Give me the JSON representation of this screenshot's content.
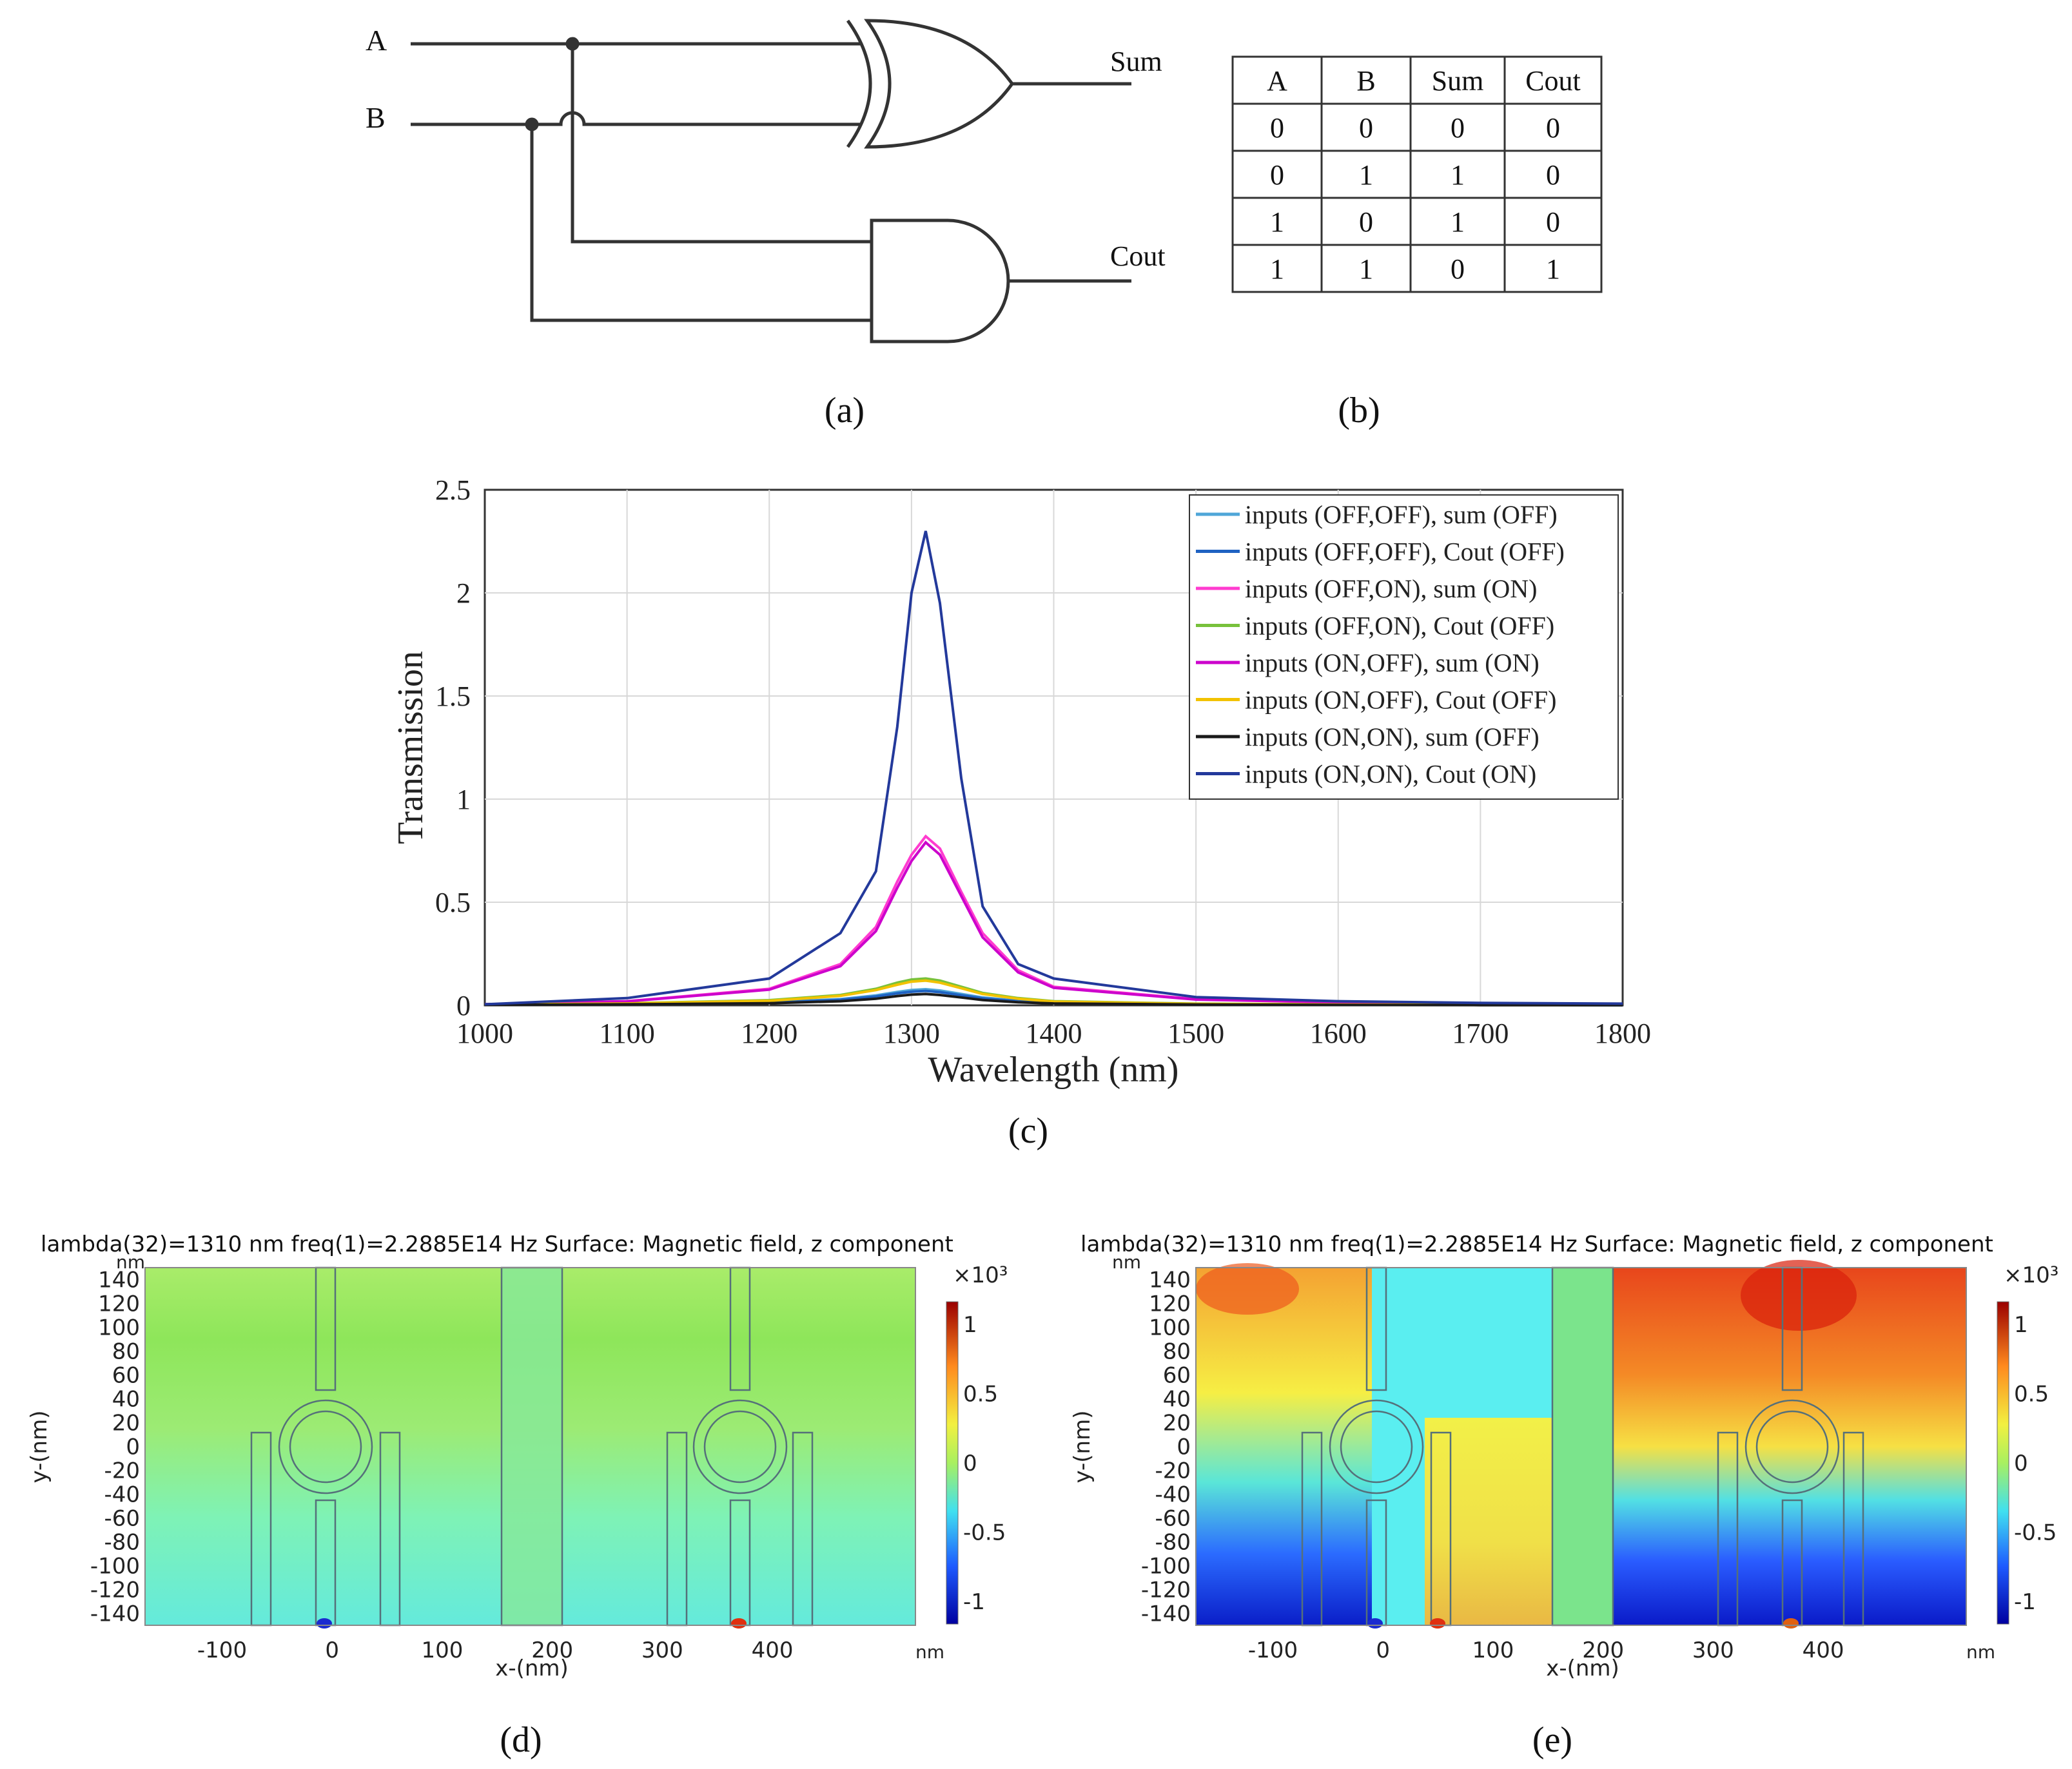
{
  "circuit": {
    "inputs": [
      "A",
      "B"
    ],
    "outputs": [
      "Sum",
      "Cout"
    ],
    "label": "(a)"
  },
  "truth_table": {
    "label": "(b)",
    "headers": [
      "A",
      "B",
      "Sum",
      "Cout"
    ],
    "rows": [
      [
        "0",
        "0",
        "0",
        "0"
      ],
      [
        "0",
        "1",
        "1",
        "0"
      ],
      [
        "1",
        "0",
        "1",
        "0"
      ],
      [
        "1",
        "1",
        "0",
        "1"
      ]
    ]
  },
  "chart_data": [
    {
      "panel": "(c)",
      "type": "line",
      "xlabel": "Wavelength (nm)",
      "ylabel": "Transmission",
      "xlim": [
        1000,
        1800
      ],
      "ylim": [
        0,
        2.5
      ],
      "xticks": [
        "1000",
        "1100",
        "1200",
        "1300",
        "1400",
        "1500",
        "1600",
        "1700",
        "1800"
      ],
      "yticks": [
        "0",
        "0.5",
        "1",
        "1.5",
        "2",
        "2.5"
      ],
      "grid": true,
      "legend_position": "top-right",
      "x": [
        1000,
        1100,
        1200,
        1250,
        1275,
        1290,
        1300,
        1310,
        1320,
        1335,
        1350,
        1375,
        1400,
        1500,
        1600,
        1700,
        1800
      ],
      "series": [
        {
          "name": "inputs (OFF,OFF), sum (OFF)",
          "color": "#4fa6d8",
          "values": [
            0.003,
            0.007,
            0.015,
            0.03,
            0.048,
            0.065,
            0.074,
            0.078,
            0.072,
            0.055,
            0.038,
            0.022,
            0.013,
            0.005,
            0.003,
            0.002,
            0.001
          ]
        },
        {
          "name": "inputs (OFF,OFF), Cout (OFF)",
          "color": "#1f62c2",
          "values": [
            0.003,
            0.006,
            0.013,
            0.027,
            0.043,
            0.058,
            0.066,
            0.07,
            0.064,
            0.049,
            0.034,
            0.02,
            0.012,
            0.005,
            0.003,
            0.002,
            0.001
          ]
        },
        {
          "name": "inputs (OFF,ON), sum (ON)",
          "color": "#ff3ccf",
          "values": [
            0.005,
            0.02,
            0.08,
            0.2,
            0.38,
            0.6,
            0.73,
            0.82,
            0.76,
            0.55,
            0.35,
            0.17,
            0.09,
            0.03,
            0.015,
            0.01,
            0.006
          ]
        },
        {
          "name": "inputs (OFF,ON), Cout (OFF)",
          "color": "#78c13b",
          "values": [
            0.004,
            0.01,
            0.025,
            0.05,
            0.08,
            0.11,
            0.125,
            0.13,
            0.12,
            0.09,
            0.06,
            0.035,
            0.02,
            0.008,
            0.005,
            0.003,
            0.002
          ]
        },
        {
          "name": "inputs (ON,OFF), sum (ON)",
          "color": "#cc00cc",
          "values": [
            0.005,
            0.019,
            0.076,
            0.19,
            0.36,
            0.57,
            0.7,
            0.79,
            0.73,
            0.53,
            0.33,
            0.16,
            0.085,
            0.028,
            0.014,
            0.009,
            0.006
          ]
        },
        {
          "name": "inputs (ON,OFF), Cout (OFF)",
          "color": "#f2c200",
          "values": [
            0.004,
            0.009,
            0.022,
            0.046,
            0.074,
            0.1,
            0.115,
            0.12,
            0.11,
            0.083,
            0.055,
            0.032,
            0.018,
            0.007,
            0.004,
            0.003,
            0.002
          ]
        },
        {
          "name": "inputs (ON,ON), sum (OFF)",
          "color": "#1a1a1a",
          "values": [
            0.002,
            0.005,
            0.01,
            0.02,
            0.032,
            0.045,
            0.052,
            0.055,
            0.05,
            0.038,
            0.026,
            0.015,
            0.009,
            0.004,
            0.002,
            0.001,
            0.001
          ]
        },
        {
          "name": "inputs (ON,ON), Cout (ON)",
          "color": "#23399b",
          "values": [
            0.005,
            0.035,
            0.13,
            0.35,
            0.65,
            1.35,
            2.0,
            2.3,
            1.95,
            1.1,
            0.48,
            0.2,
            0.13,
            0.04,
            0.02,
            0.012,
            0.008
          ]
        }
      ]
    }
  ],
  "field_maps": [
    {
      "label": "(d)",
      "title": "lambda(32)=1310 nm freq(1)=2.2885E14 Hz  Surface: Magnetic field, z component",
      "xlabel": "x-(nm)",
      "ylabel": "y-(nm)",
      "unit": "nm",
      "xticks": [
        "-100",
        "0",
        "100",
        "200",
        "300",
        "400"
      ],
      "yticks": [
        "140",
        "120",
        "100",
        "80",
        "60",
        "40",
        "20",
        "0",
        "-20",
        "-40",
        "-60",
        "-80",
        "-100",
        "-120",
        "-140"
      ],
      "colorbar_exponent": "×10³",
      "colorbar_ticks": [
        "1",
        "0.5",
        "0",
        "-0.5",
        "-1"
      ]
    },
    {
      "label": "(e)",
      "title": "lambda(32)=1310 nm freq(1)=2.2885E14 Hz  Surface: Magnetic field, z component",
      "xlabel": "x-(nm)",
      "ylabel": "y-(nm)",
      "unit": "nm",
      "xticks": [
        "-100",
        "0",
        "100",
        "200",
        "300",
        "400"
      ],
      "yticks": [
        "140",
        "120",
        "100",
        "80",
        "60",
        "40",
        "20",
        "0",
        "-20",
        "-40",
        "-60",
        "-80",
        "-100",
        "-120",
        "-140"
      ],
      "colorbar_exponent": "×10³",
      "colorbar_ticks": [
        "1",
        "0.5",
        "0",
        "-0.5",
        "-1"
      ]
    }
  ]
}
